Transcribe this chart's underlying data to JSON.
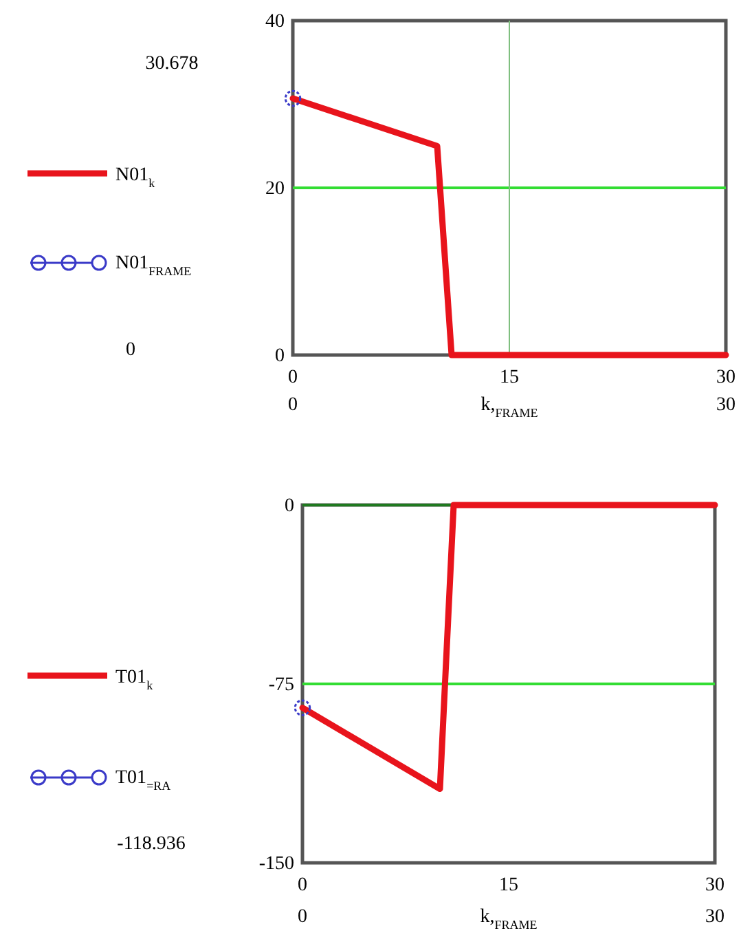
{
  "chart_data": [
    {
      "type": "line",
      "xlabel": "k,$_{FRAME}$",
      "xlim": [
        0,
        30
      ],
      "xticks": [
        0,
        15,
        30
      ],
      "ylim": [
        0,
        40
      ],
      "yticks": [
        0,
        20,
        40
      ],
      "grid": false,
      "legend": "left",
      "series": [
        {
          "name": "N01$_{k}$",
          "color": "#e8141c",
          "x": [
            0,
            10,
            11,
            30
          ],
          "values": [
            30.7,
            25,
            0,
            0
          ]
        },
        {
          "name": "N01$_{FRAME}$",
          "type": "scatter",
          "marker": "circle",
          "color": "#3a3ac8",
          "x": [
            0
          ],
          "values": [
            30.7
          ]
        }
      ],
      "ref_lines": [
        {
          "axis": "y",
          "value": 20,
          "color": "#33dd33"
        },
        {
          "axis": "x",
          "value": 15,
          "color": "#7fbf7f"
        }
      ],
      "annotations": [
        "30.678",
        "0",
        "0",
        "30"
      ]
    },
    {
      "type": "line",
      "xlabel": "k,$_{FRAME}$",
      "xlim": [
        0,
        30
      ],
      "xticks": [
        0,
        15,
        30
      ],
      "ylim": [
        -150,
        0
      ],
      "yticks": [
        -150,
        -75,
        0
      ],
      "grid": false,
      "legend": "left",
      "series": [
        {
          "name": "T01$_{k}$",
          "color": "#e8141c",
          "x": [
            0,
            10,
            11,
            30
          ],
          "values": [
            -85,
            -119,
            0,
            0
          ]
        },
        {
          "name": "T01$_{=RA}$",
          "type": "scatter",
          "marker": "circle",
          "color": "#3a3ac8",
          "x": [
            0
          ],
          "values": [
            -85
          ]
        }
      ],
      "ref_lines": [
        {
          "axis": "y",
          "value": -75,
          "color": "#33dd33"
        },
        {
          "axis": "y",
          "value": 0,
          "color": "#1f7a1f"
        }
      ],
      "annotations": [
        "-118.936",
        "0",
        "30"
      ]
    }
  ]
}
